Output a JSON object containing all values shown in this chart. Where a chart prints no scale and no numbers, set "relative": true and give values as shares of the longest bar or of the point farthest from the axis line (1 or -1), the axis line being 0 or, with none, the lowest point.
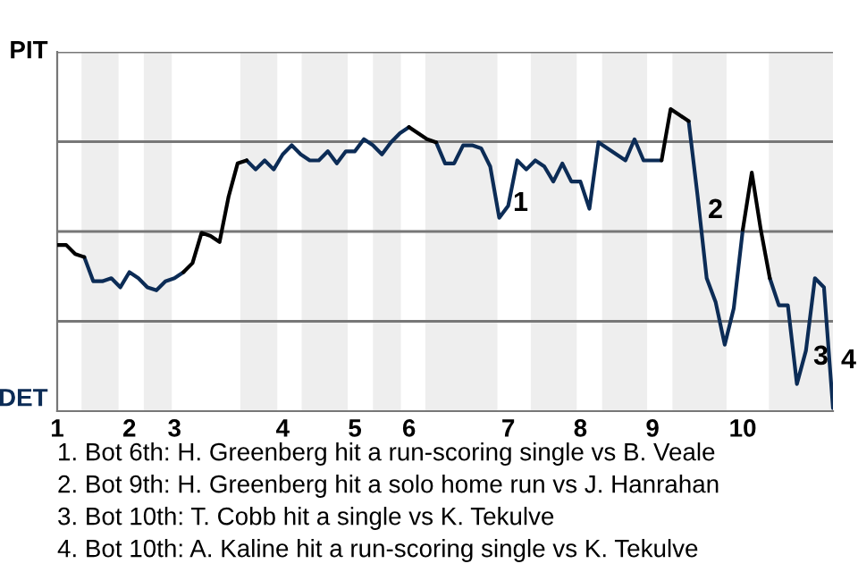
{
  "chart_data": {
    "type": "line",
    "categories": [
      "1",
      null,
      null,
      null,
      null,
      null,
      null,
      null,
      "2",
      null,
      null,
      null,
      null,
      "3",
      null,
      null,
      null,
      null,
      null,
      null,
      null,
      null,
      null,
      null,
      null,
      "4",
      null,
      null,
      null,
      null,
      null,
      null,
      null,
      "5",
      null,
      null,
      null,
      null,
      null,
      "6",
      null,
      null,
      null,
      null,
      null,
      null,
      null,
      null,
      null,
      null,
      "7",
      null,
      null,
      null,
      null,
      null,
      null,
      null,
      "8",
      null,
      null,
      null,
      null,
      null,
      null,
      null,
      "9",
      null,
      null,
      null,
      null,
      null,
      null,
      null,
      null,
      null,
      "10",
      null,
      null,
      null,
      null,
      null,
      null,
      null,
      null,
      null,
      null
    ],
    "relative": true,
    "series": [
      {
        "color": "#0c2c56",
        "values": [
          null,
          null,
          null,
          0.51,
          0.43,
          0.43,
          0.44,
          0.41,
          0.46,
          0.44,
          0.41,
          0.4,
          0.43,
          0.44,
          0.46,
          null,
          null,
          null,
          null,
          null,
          null,
          0.83,
          0.8,
          0.83,
          0.8,
          0.85,
          0.88,
          0.85,
          0.83,
          0.83,
          0.86,
          0.82,
          0.86,
          0.86,
          0.9,
          0.88,
          0.85,
          0.89,
          0.92,
          0.94,
          null,
          null,
          0.89,
          0.82,
          0.82,
          0.88,
          0.88,
          0.87,
          0.81,
          0.64,
          0.68,
          0.83,
          0.8,
          0.83,
          0.81,
          0.76,
          0.82,
          0.76,
          0.76,
          0.67,
          0.89,
          0.87,
          0.85,
          0.83,
          0.9,
          0.83,
          0.83,
          0.83,
          null,
          null,
          0.96,
          0.71,
          0.44,
          0.36,
          0.22,
          0.34,
          0.6,
          null,
          null,
          0.44,
          0.35,
          0.35,
          0.09,
          0.2,
          0.44,
          0.41,
          0.01
        ]
      },
      {
        "color": "#000000",
        "values": [
          0.55,
          0.55,
          0.52,
          0.51,
          null,
          null,
          null,
          null,
          null,
          null,
          null,
          null,
          null,
          null,
          0.46,
          0.49,
          0.59,
          0.58,
          0.56,
          0.71,
          0.82,
          0.83,
          null,
          null,
          null,
          null,
          null,
          null,
          null,
          null,
          null,
          null,
          null,
          null,
          null,
          null,
          null,
          null,
          null,
          0.94,
          0.92,
          0.9,
          0.89,
          null,
          null,
          null,
          null,
          null,
          null,
          null,
          null,
          null,
          null,
          null,
          null,
          null,
          null,
          null,
          null,
          null,
          null,
          null,
          null,
          null,
          null,
          null,
          null,
          0.83,
          1.0,
          0.98,
          0.96,
          null,
          null,
          null,
          null,
          null,
          0.6,
          0.79,
          0.6,
          0.44,
          null,
          null,
          null,
          null,
          null,
          null,
          null
        ]
      }
    ],
    "grid": "y",
    "marker": "none",
    "line_style": "solid",
    "annotations": [
      "1",
      "2",
      "3",
      "4",
      "PIT",
      "DET",
      "1. Bot 6th: H. Greenberg hit a run-scoring single vs B. Veale",
      "2. Bot 9th: H. Greenberg hit a solo home run vs J. Hanrahan",
      "3. Bot 10th: T. Cobb hit a single vs K. Tekulve",
      "4. Bot 10th: A. Kaline hit a run-scoring single vs K. Tekulve"
    ]
  }
}
